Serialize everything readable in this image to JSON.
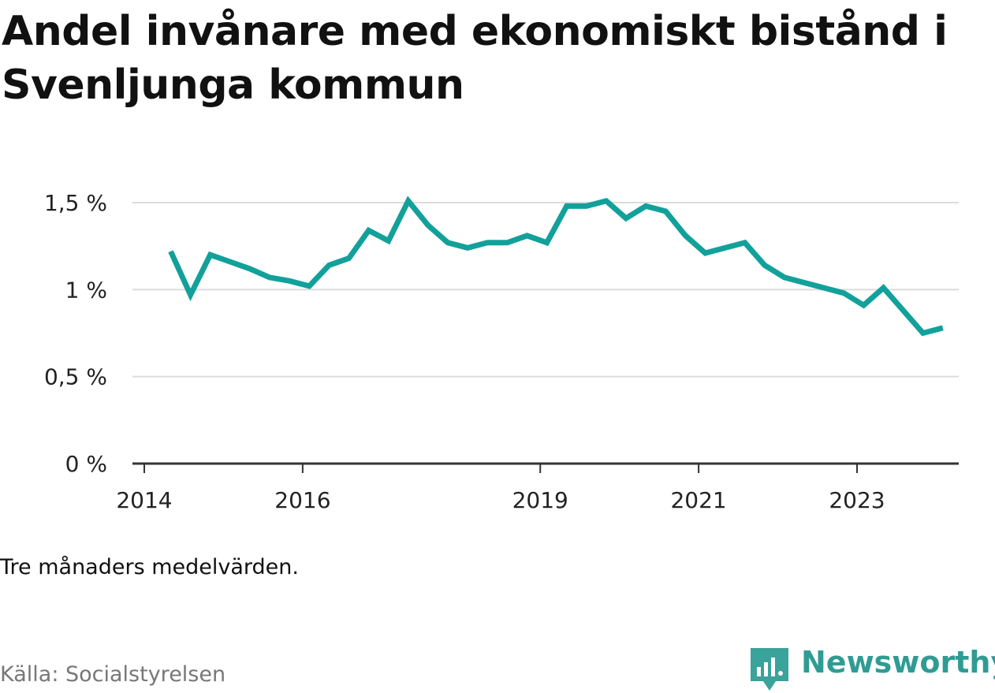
{
  "header": {
    "title": "Andel invånare med ekonomiskt bistånd i Svenljunga kommun"
  },
  "chart_data": {
    "type": "line",
    "title": "Andel invånare med ekonomiskt bistånd i Svenljunga kommun",
    "xlabel": "",
    "ylabel": "",
    "x_ticks": [
      "2014",
      "2016",
      "2019",
      "2021",
      "2023"
    ],
    "y_ticks": [
      "0 %",
      "0,5 %",
      "1 %",
      "1,5 %"
    ],
    "ylim": [
      0,
      1.5
    ],
    "grid": true,
    "color": "#12a19a",
    "series": [
      {
        "name": "",
        "points": [
          {
            "x": "2014-05",
            "y": 1.22
          },
          {
            "x": "2014-08",
            "y": 0.97
          },
          {
            "x": "2014-11",
            "y": 1.2
          },
          {
            "x": "2015-02",
            "y": 1.16
          },
          {
            "x": "2015-05",
            "y": 1.12
          },
          {
            "x": "2015-08",
            "y": 1.07
          },
          {
            "x": "2015-11",
            "y": 1.05
          },
          {
            "x": "2016-02",
            "y": 1.02
          },
          {
            "x": "2016-05",
            "y": 1.14
          },
          {
            "x": "2016-08",
            "y": 1.18
          },
          {
            "x": "2016-11",
            "y": 1.34
          },
          {
            "x": "2017-02",
            "y": 1.28
          },
          {
            "x": "2017-05",
            "y": 1.51
          },
          {
            "x": "2017-08",
            "y": 1.37
          },
          {
            "x": "2017-11",
            "y": 1.27
          },
          {
            "x": "2018-02",
            "y": 1.24
          },
          {
            "x": "2018-05",
            "y": 1.27
          },
          {
            "x": "2018-08",
            "y": 1.27
          },
          {
            "x": "2018-11",
            "y": 1.31
          },
          {
            "x": "2019-02",
            "y": 1.27
          },
          {
            "x": "2019-05",
            "y": 1.48
          },
          {
            "x": "2019-08",
            "y": 1.48
          },
          {
            "x": "2019-11",
            "y": 1.51
          },
          {
            "x": "2020-02",
            "y": 1.41
          },
          {
            "x": "2020-05",
            "y": 1.48
          },
          {
            "x": "2020-08",
            "y": 1.45
          },
          {
            "x": "2020-11",
            "y": 1.31
          },
          {
            "x": "2021-02",
            "y": 1.21
          },
          {
            "x": "2021-05",
            "y": 1.24
          },
          {
            "x": "2021-08",
            "y": 1.27
          },
          {
            "x": "2021-11",
            "y": 1.14
          },
          {
            "x": "2022-02",
            "y": 1.07
          },
          {
            "x": "2022-05",
            "y": 1.04
          },
          {
            "x": "2022-08",
            "y": 1.01
          },
          {
            "x": "2022-11",
            "y": 0.98
          },
          {
            "x": "2023-02",
            "y": 0.91
          },
          {
            "x": "2023-05",
            "y": 1.01
          },
          {
            "x": "2023-08",
            "y": 0.88
          },
          {
            "x": "2023-11",
            "y": 0.75
          },
          {
            "x": "2024-02",
            "y": 0.78
          }
        ]
      }
    ]
  },
  "footer": {
    "note": "Tre månaders medelvärden.",
    "source": "Källa: Socialstyrelsen",
    "brand": "Newsworthy"
  }
}
